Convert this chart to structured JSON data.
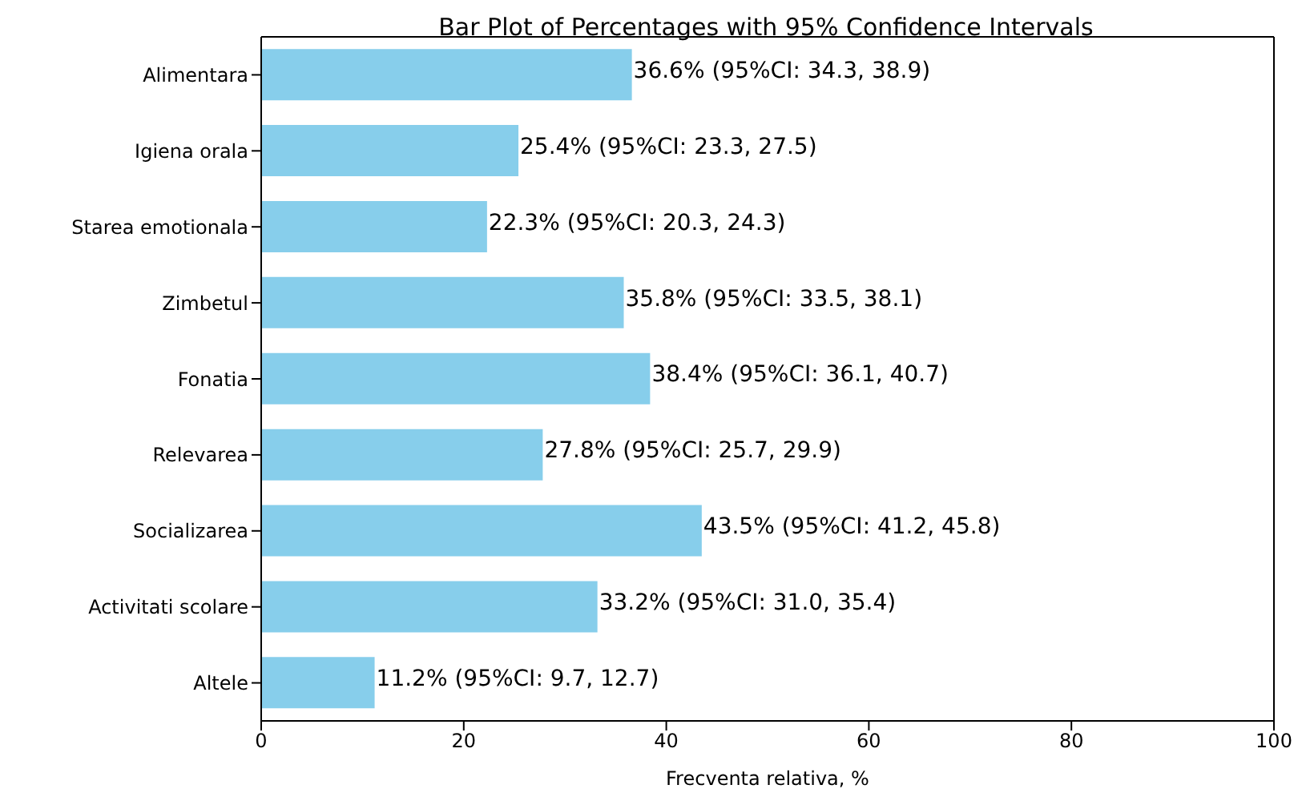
{
  "chart_data": {
    "type": "bar",
    "orientation": "horizontal",
    "title": "Bar Plot of Percentages with 95% Confidence Intervals",
    "xlabel": "Frecventa relativa, %",
    "categories": [
      "Alimentara",
      "Igiena orala",
      "Starea emotionala",
      "Zimbetul",
      "Fonatia",
      "Relevarea",
      "Socializarea",
      "Activitati scolare",
      "Altele"
    ],
    "values": [
      36.6,
      25.4,
      22.3,
      35.8,
      38.4,
      27.8,
      43.5,
      33.2,
      11.2
    ],
    "value_labels": [
      "36.6% (95%CI: 34.3, 38.9)",
      "25.4% (95%CI: 23.3, 27.5)",
      "22.3% (95%CI: 20.3, 24.3)",
      "35.8% (95%CI: 33.5, 38.1)",
      "38.4% (95%CI: 36.1, 40.7)",
      "27.8% (95%CI: 25.7, 29.9)",
      "43.5% (95%CI: 41.2, 45.8)",
      "33.2% (95%CI: 31.0, 35.4)",
      "11.2% (95%CI: 9.7, 12.7)"
    ],
    "color": "#87ceeb",
    "xlim": [
      0,
      100
    ],
    "xticks": [
      0,
      20,
      40,
      60,
      80,
      100
    ],
    "grid": false,
    "legend": false
  }
}
